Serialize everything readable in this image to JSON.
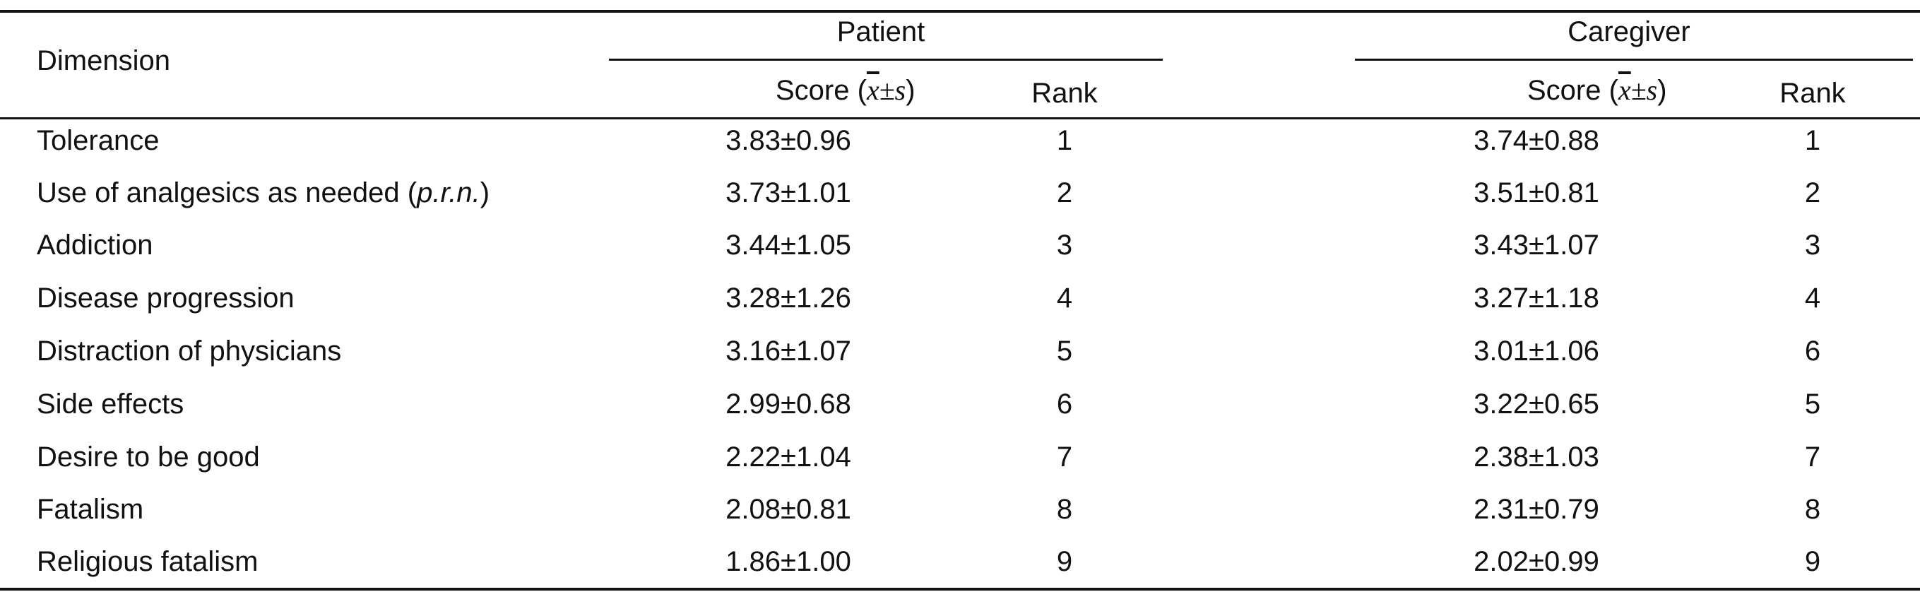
{
  "headers": {
    "dimension": "Dimension",
    "patient": "Patient",
    "caregiver": "Caregiver",
    "score_prefix": "Score (",
    "score_xbar": "x",
    "score_pm": "±",
    "score_s": "s",
    "score_suffix": ")",
    "rank": "Rank"
  },
  "rows": [
    {
      "dimension": "Tolerance",
      "patient_score": "3.83±0.96",
      "patient_rank": "1",
      "caregiver_score": "3.74±0.88",
      "caregiver_rank": "1"
    },
    {
      "dimension_prefix": "Use of analgesics as needed (",
      "dimension_italic": "p.r.n.",
      "dimension_suffix": ")",
      "patient_score": "3.73±1.01",
      "patient_rank": "2",
      "caregiver_score": "3.51±0.81",
      "caregiver_rank": "2"
    },
    {
      "dimension": "Addiction",
      "patient_score": "3.44±1.05",
      "patient_rank": "3",
      "caregiver_score": "3.43±1.07",
      "caregiver_rank": "3"
    },
    {
      "dimension": "Disease progression",
      "patient_score": "3.28±1.26",
      "patient_rank": "4",
      "caregiver_score": "3.27±1.18",
      "caregiver_rank": "4"
    },
    {
      "dimension": "Distraction of physicians",
      "patient_score": "3.16±1.07",
      "patient_rank": "5",
      "caregiver_score": "3.01±1.06",
      "caregiver_rank": "6"
    },
    {
      "dimension": "Side effects",
      "patient_score": "2.99±0.68",
      "patient_rank": "6",
      "caregiver_score": "3.22±0.65",
      "caregiver_rank": "5"
    },
    {
      "dimension": "Desire to be good",
      "patient_score": "2.22±1.04",
      "patient_rank": "7",
      "caregiver_score": "2.38±1.03",
      "caregiver_rank": "7"
    },
    {
      "dimension": "Fatalism",
      "patient_score": "2.08±0.81",
      "patient_rank": "8",
      "caregiver_score": "2.31±0.79",
      "caregiver_rank": "8"
    },
    {
      "dimension": "Religious fatalism",
      "patient_score": "1.86±1.00",
      "patient_rank": "9",
      "caregiver_score": "2.02±0.99",
      "caregiver_rank": "9"
    }
  ]
}
